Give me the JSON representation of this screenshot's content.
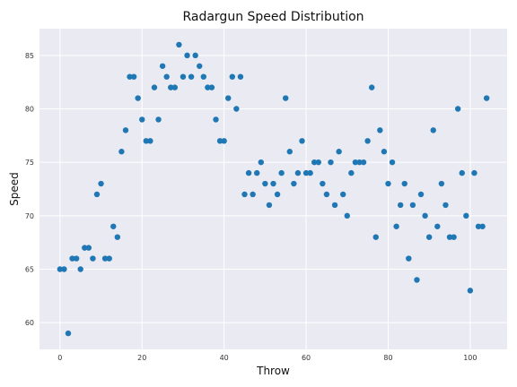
{
  "chart_data": {
    "type": "scatter",
    "title": "Radargun Speed Distribution",
    "xlabel": "Throw",
    "ylabel": "Speed",
    "xlim": [
      -5,
      109
    ],
    "ylim": [
      57.5,
      87.5
    ],
    "xticks": [
      0,
      20,
      40,
      60,
      80,
      100
    ],
    "yticks": [
      60,
      65,
      70,
      75,
      80,
      85
    ],
    "grid": true,
    "colors": {
      "plot_background": "#eaeaf2",
      "grid": "#ffffff",
      "marker": "#1f77b4"
    },
    "series": [
      {
        "x": [
          0,
          1,
          2,
          3,
          4,
          5,
          6,
          7,
          8,
          9,
          10,
          11,
          12,
          13,
          14,
          15,
          16,
          17,
          18,
          19,
          20,
          21,
          22,
          23,
          24,
          25,
          26,
          27,
          28,
          29,
          30,
          31,
          32,
          33,
          34,
          35,
          36,
          37,
          38,
          39,
          40,
          41,
          42,
          43,
          44,
          45,
          46,
          47,
          48,
          49,
          50,
          51,
          52,
          53,
          54,
          55,
          56,
          57,
          58,
          59,
          60,
          61,
          62,
          63,
          64,
          65,
          66,
          67,
          68,
          69,
          70,
          71,
          72,
          73,
          74,
          75,
          76,
          77,
          78,
          79,
          80,
          81,
          82,
          83,
          84,
          85,
          86,
          87,
          88,
          89,
          90,
          91,
          92,
          93,
          94,
          95,
          96,
          97,
          98,
          99,
          100,
          101,
          102,
          103,
          104
        ],
        "y": [
          65,
          65,
          59,
          66,
          66,
          65,
          67,
          67,
          66,
          72,
          73,
          66,
          66,
          69,
          68,
          76,
          78,
          83,
          83,
          81,
          79,
          77,
          77,
          82,
          79,
          84,
          83,
          82,
          82,
          86,
          83,
          85,
          83,
          85,
          84,
          83,
          82,
          82,
          79,
          77,
          77,
          81,
          83,
          80,
          83,
          72,
          74,
          72,
          74,
          75,
          73,
          71,
          73,
          72,
          74,
          81,
          76,
          73,
          74,
          77,
          74,
          74,
          75,
          75,
          73,
          72,
          75,
          71,
          76,
          72,
          70,
          74,
          75,
          75,
          75,
          77,
          82,
          68,
          78,
          76,
          73,
          75,
          69,
          71,
          73,
          66,
          71,
          64,
          72,
          70,
          68,
          78,
          69,
          73,
          71,
          68,
          68,
          80,
          74,
          70,
          63,
          74,
          69,
          69,
          81
        ]
      }
    ]
  }
}
